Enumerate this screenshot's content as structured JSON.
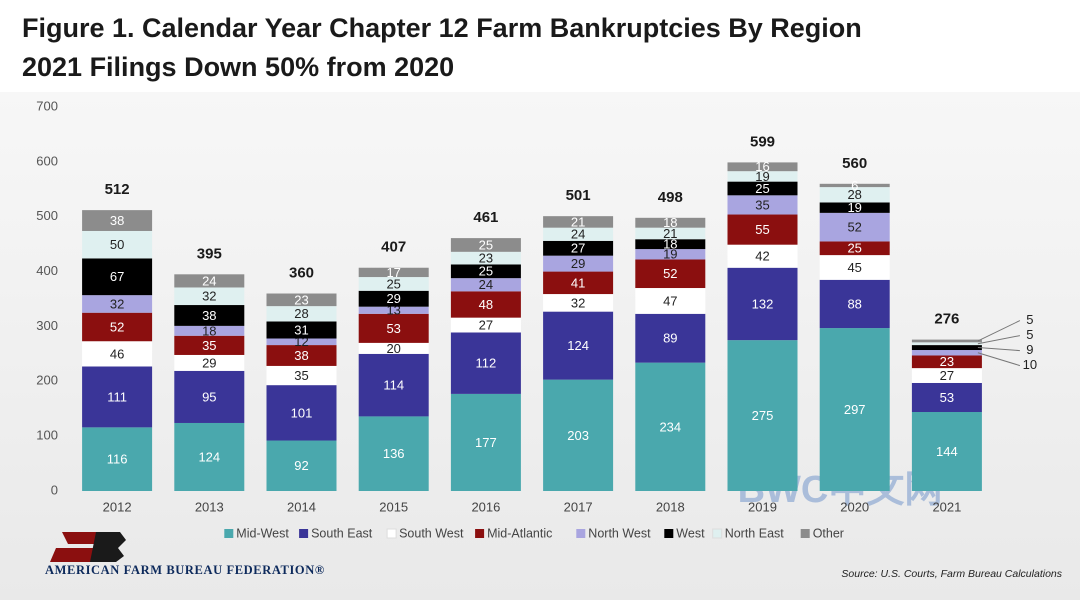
{
  "chart_data": {
    "type": "stacked-bar",
    "title": "Figure 1. Calendar Year Chapter 12 Farm Bankruptcies By Region",
    "subtitle": "2021 Filings Down 50% from 2020",
    "categories": [
      "2012",
      "2013",
      "2014",
      "2015",
      "2016",
      "2017",
      "2018",
      "2019",
      "2020",
      "2021"
    ],
    "series": [
      {
        "name": "Mid-West",
        "color": "#4aa8ad",
        "values": [
          116,
          124,
          92,
          136,
          177,
          203,
          234,
          275,
          297,
          144
        ]
      },
      {
        "name": "South East",
        "color": "#3a3598",
        "values": [
          111,
          95,
          101,
          114,
          112,
          124,
          89,
          132,
          88,
          53
        ]
      },
      {
        "name": "South West",
        "color": "#ffffff",
        "values": [
          46,
          29,
          35,
          20,
          27,
          32,
          47,
          42,
          45,
          27
        ]
      },
      {
        "name": "Mid-Atlantic",
        "color": "#8b0f0f",
        "values": [
          52,
          35,
          38,
          53,
          48,
          41,
          52,
          55,
          25,
          23
        ]
      },
      {
        "name": "North West",
        "color": "#a9a5e0",
        "values": [
          32,
          18,
          12,
          13,
          24,
          29,
          19,
          35,
          52,
          10
        ]
      },
      {
        "name": "West",
        "color": "#000000",
        "values": [
          67,
          38,
          31,
          29,
          25,
          27,
          18,
          25,
          19,
          9
        ]
      },
      {
        "name": "North East",
        "color": "#dff0f0",
        "values": [
          50,
          32,
          28,
          25,
          23,
          24,
          21,
          19,
          28,
          5
        ]
      },
      {
        "name": "Other",
        "color": "#8c8c8c",
        "values": [
          38,
          24,
          23,
          17,
          25,
          21,
          18,
          16,
          6,
          5
        ]
      }
    ],
    "totals": [
      512,
      395,
      360,
      407,
      461,
      501,
      498,
      599,
      560,
      276
    ],
    "ylim": [
      0,
      700
    ],
    "yticks": [
      0,
      100,
      200,
      300,
      400,
      500,
      600,
      700
    ],
    "grid": false,
    "legend": "bottom"
  },
  "footer": {
    "organization": "AMERICAN FARM BUREAU FEDERATION®",
    "source": "Source: U.S. Courts, Farm Bureau Calculations",
    "watermark": "BWC中文网"
  }
}
